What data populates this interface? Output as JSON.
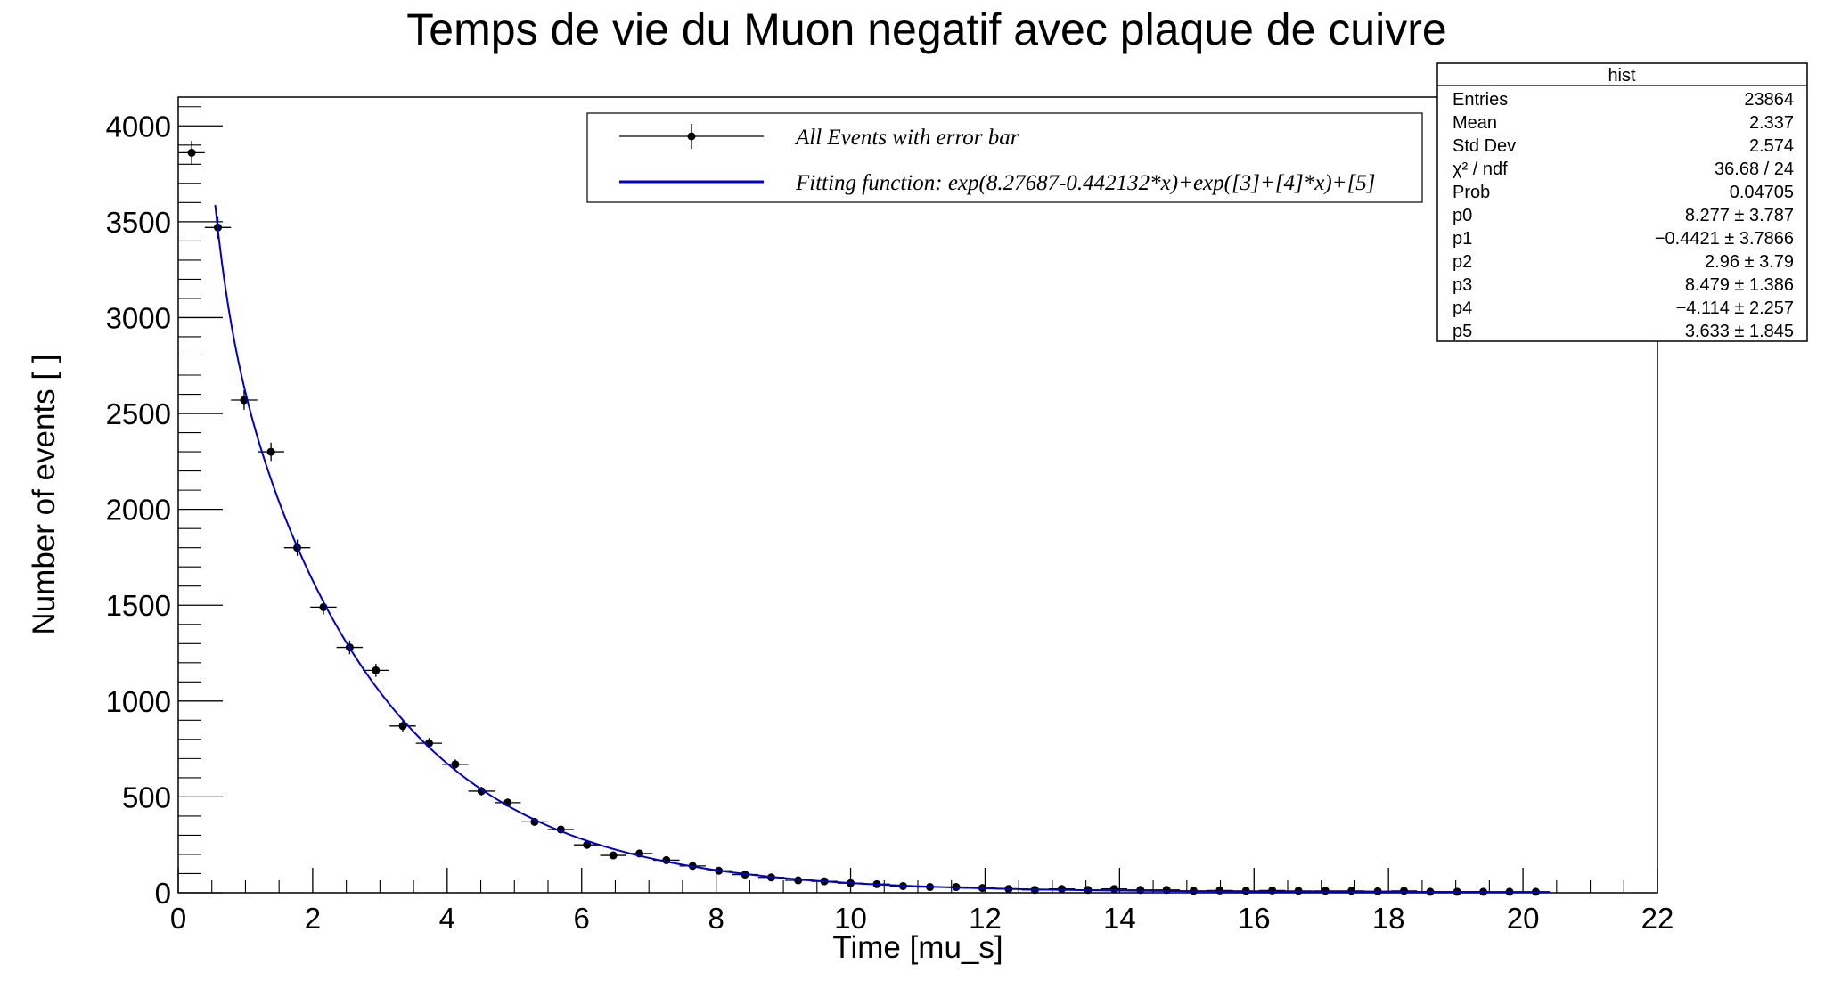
{
  "chart_data": {
    "type": "scatter",
    "title": "Temps de vie du Muon negatif avec plaque de cuivre",
    "xlabel": "Time [mu_s]",
    "ylabel": "Number of events [ ]",
    "xlim": [
      0,
      22
    ],
    "ylim": [
      0,
      4150
    ],
    "x_ticks": [
      "0",
      "2",
      "4",
      "6",
      "8",
      "10",
      "12",
      "14",
      "16",
      "18",
      "20",
      "22"
    ],
    "y_ticks": [
      "0",
      "500",
      "1000",
      "1500",
      "2000",
      "2500",
      "3000",
      "3500",
      "4000"
    ],
    "bin_width": 0.39,
    "series": [
      {
        "name": "All Events with error bar",
        "style": "points-with-error-bars",
        "x": [
          0.2,
          0.59,
          0.98,
          1.38,
          1.77,
          2.16,
          2.55,
          2.94,
          3.34,
          3.73,
          4.12,
          4.51,
          4.9,
          5.3,
          5.69,
          6.08,
          6.47,
          6.86,
          7.26,
          7.65,
          8.04,
          8.43,
          8.82,
          9.22,
          9.61,
          10.0,
          10.39,
          10.78,
          11.18,
          11.57,
          11.96,
          12.35,
          12.74,
          13.14,
          13.53,
          13.92,
          14.31,
          14.7,
          15.1,
          15.49,
          15.88,
          16.27,
          16.66,
          17.06,
          17.45,
          17.84,
          18.23,
          18.62,
          19.02,
          19.41,
          19.8,
          20.19
        ],
        "y": [
          3860,
          3470,
          2570,
          2300,
          1800,
          1490,
          1280,
          1160,
          870,
          780,
          670,
          530,
          470,
          370,
          330,
          250,
          195,
          205,
          170,
          140,
          115,
          95,
          80,
          65,
          60,
          50,
          45,
          35,
          30,
          30,
          25,
          20,
          15,
          20,
          15,
          20,
          15,
          15,
          10,
          12,
          10,
          12,
          10,
          10,
          10,
          8,
          10,
          5,
          5,
          5,
          5,
          5
        ]
      },
      {
        "name": "Fitting function:  exp(8.27687-0.442132*x)+exp([3]+[4]*x)+[5]",
        "style": "line",
        "color": "#0000cc",
        "x_range": [
          0.55,
          20.4
        ],
        "p0": 8.27687,
        "p1": -0.442132,
        "p3": 8.479,
        "p4": -4.114,
        "p5": 3.633
      }
    ]
  },
  "legend": {
    "points_label": "All Events with error bar",
    "fit_label": "Fitting function:  exp(8.27687-0.442132*x)+exp([3]+[4]*x)+[5]"
  },
  "stats_box": {
    "title": "hist",
    "rows": [
      {
        "label": "Entries",
        "value": "23864"
      },
      {
        "label": "Mean",
        "value": "2.337"
      },
      {
        "label": "Std Dev",
        "value": "2.574"
      },
      {
        "label": "χ² / ndf",
        "value": "36.68 / 24"
      },
      {
        "label": "Prob",
        "value": "0.04705"
      },
      {
        "label": "p0",
        "value": "8.277 ± 3.787"
      },
      {
        "label": "p1",
        "value": "−0.4421 ± 3.7866"
      },
      {
        "label": "p2",
        "value": "2.96 ± 3.79"
      },
      {
        "label": "p3",
        "value": "8.479 ± 1.386"
      },
      {
        "label": "p4",
        "value": "−4.114 ± 2.257"
      },
      {
        "label": "p5",
        "value": "3.633 ± 1.845"
      }
    ]
  },
  "colors": {
    "fit_line": "#0000cc",
    "points": "#000000",
    "frame": "#000000"
  }
}
